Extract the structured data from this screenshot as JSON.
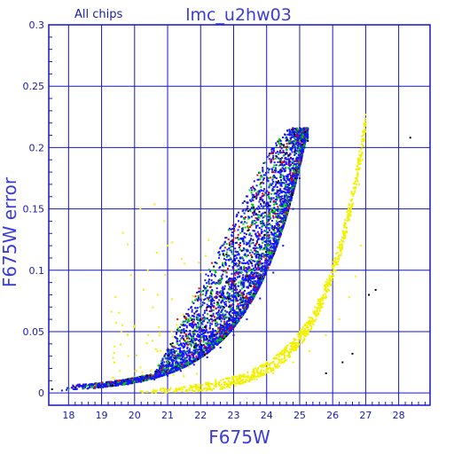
{
  "chart_data": {
    "type": "scatter",
    "title": "lmc_u2hw03",
    "subtitle": "All chips",
    "xlabel": "F675W",
    "ylabel": "F675W error",
    "xlim": [
      17.4,
      28.95
    ],
    "ylim": [
      -0.01,
      0.3
    ],
    "xticks": [
      "18",
      "19",
      "20",
      "21",
      "22",
      "23",
      "24",
      "25",
      "26",
      "27",
      "28"
    ],
    "yticks": [
      "0",
      "0.05",
      "0.1",
      "0.15",
      "0.2",
      "0.25",
      "0.3"
    ],
    "grid": true,
    "colors": {
      "axis": "#1616c8",
      "grid": "#1616c8",
      "text": "#1a1aa6",
      "title": "#3b3bd9",
      "blue": "#1414ff",
      "green": "#00cc00",
      "red": "#ee0000",
      "yellow": "#f2f200",
      "black": "#000000"
    },
    "series": [
      {
        "color": "#1414ff",
        "envelope": {
          "m0": 17.7,
          "m1": 25.25,
          "e0": 0.002,
          "emax": 0.215
        },
        "points": [
          [
            17.8,
            0.002
          ],
          [
            18.2,
            0.003
          ],
          [
            18.6,
            0.004
          ],
          [
            19.0,
            0.005
          ],
          [
            19.4,
            0.006
          ],
          [
            19.8,
            0.007
          ],
          [
            20.2,
            0.009
          ],
          [
            20.6,
            0.011
          ],
          [
            21.0,
            0.014
          ],
          [
            21.4,
            0.018
          ],
          [
            21.8,
            0.023
          ],
          [
            22.2,
            0.029
          ],
          [
            22.6,
            0.037
          ],
          [
            23.0,
            0.047
          ],
          [
            23.4,
            0.06
          ],
          [
            23.8,
            0.077
          ],
          [
            24.2,
            0.098
          ],
          [
            24.5,
            0.12
          ],
          [
            24.8,
            0.15
          ],
          [
            25.0,
            0.175
          ],
          [
            25.15,
            0.2
          ],
          [
            25.25,
            0.215
          ]
        ]
      },
      {
        "color": "#00cc00",
        "points": [
          [
            22.5,
            0.05
          ],
          [
            23.1,
            0.08
          ],
          [
            23.6,
            0.1
          ],
          [
            24.0,
            0.12
          ],
          [
            24.3,
            0.14
          ],
          [
            24.6,
            0.16
          ],
          [
            24.85,
            0.18
          ],
          [
            25.0,
            0.2
          ],
          [
            25.1,
            0.21
          ],
          [
            21.8,
            0.04
          ],
          [
            22.9,
            0.11
          ],
          [
            23.5,
            0.13
          ],
          [
            24.1,
            0.17
          ],
          [
            24.4,
            0.19
          ]
        ]
      },
      {
        "color": "#ee0000",
        "points": [
          [
            21.3,
            0.06
          ],
          [
            22.0,
            0.08
          ],
          [
            22.7,
            0.1
          ],
          [
            23.2,
            0.12
          ],
          [
            23.7,
            0.16
          ],
          [
            24.2,
            0.18
          ],
          [
            24.6,
            0.2
          ],
          [
            24.9,
            0.21
          ],
          [
            23.0,
            0.09
          ],
          [
            22.4,
            0.07
          ]
        ]
      },
      {
        "color": "#f2f200",
        "points": [
          [
            20.4,
            0.001
          ],
          [
            21.2,
            0.001
          ],
          [
            22.0,
            0.002
          ],
          [
            22.8,
            0.005
          ],
          [
            23.5,
            0.01
          ],
          [
            24.2,
            0.016
          ],
          [
            24.8,
            0.025
          ],
          [
            25.3,
            0.034
          ],
          [
            25.8,
            0.047
          ],
          [
            26.2,
            0.06
          ],
          [
            26.5,
            0.078
          ],
          [
            26.7,
            0.095
          ],
          [
            26.85,
            0.12
          ],
          [
            19.6,
            0.05
          ],
          [
            20.4,
            0.1
          ],
          [
            20.9,
            0.14
          ],
          [
            21.0,
            0.12
          ],
          [
            20.7,
            0.08
          ],
          [
            19.8,
            0.03
          ],
          [
            26.8,
            0.17
          ],
          [
            26.9,
            0.19
          ]
        ]
      },
      {
        "color": "#000000",
        "points": [
          [
            17.5,
            0.003
          ],
          [
            25.8,
            0.016
          ],
          [
            26.3,
            0.025
          ],
          [
            26.6,
            0.032
          ],
          [
            27.1,
            0.08
          ],
          [
            27.3,
            0.084
          ],
          [
            28.35,
            0.208
          ],
          [
            22.8,
            0.09
          ],
          [
            23.4,
            0.15
          ],
          [
            22.2,
            0.07
          ]
        ]
      }
    ]
  }
}
